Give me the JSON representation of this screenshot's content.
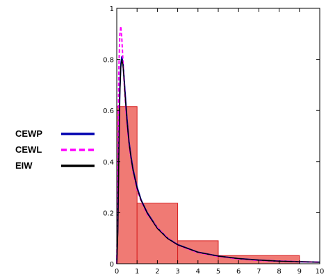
{
  "chart_data": {
    "type": "bar",
    "histogram": {
      "bins": [
        [
          0,
          1
        ],
        [
          1,
          3
        ],
        [
          3,
          5
        ],
        [
          5,
          9
        ]
      ],
      "values": [
        0.615,
        0.237,
        0.09,
        0.032
      ],
      "color": "#f07a74",
      "edge_color": "#d62020"
    },
    "series": [
      {
        "name": "CEWP",
        "color": "#0000b0",
        "style": "solid",
        "x": [
          0,
          0.05,
          0.1,
          0.15,
          0.2,
          0.25,
          0.3,
          0.35,
          0.4,
          0.5,
          0.6,
          0.7,
          0.8,
          1,
          1.2,
          1.5,
          2,
          2.5,
          3,
          4,
          5,
          6,
          7,
          8,
          9,
          10
        ],
        "values": [
          0,
          0.15,
          0.45,
          0.68,
          0.78,
          0.81,
          0.79,
          0.74,
          0.68,
          0.57,
          0.48,
          0.42,
          0.37,
          0.3,
          0.25,
          0.2,
          0.14,
          0.1,
          0.075,
          0.045,
          0.03,
          0.02,
          0.014,
          0.01,
          0.008,
          0.006
        ]
      },
      {
        "name": "CEWL",
        "color": "#ff00ff",
        "style": "dashed",
        "x": [
          0,
          0.05,
          0.1,
          0.15,
          0.2,
          0.25,
          0.3,
          0.35,
          0.4,
          0.5,
          0.6,
          0.7,
          0.8,
          1,
          1.2,
          1.5,
          2,
          2.5,
          3,
          4,
          5,
          6,
          7,
          8,
          9,
          10
        ],
        "values": [
          0,
          0.3,
          0.75,
          0.9,
          0.93,
          0.88,
          0.8,
          0.73,
          0.66,
          0.55,
          0.47,
          0.41,
          0.36,
          0.29,
          0.245,
          0.195,
          0.14,
          0.1,
          0.073,
          0.044,
          0.029,
          0.019,
          0.013,
          0.01,
          0.008,
          0.006
        ]
      },
      {
        "name": "EIW",
        "color": "#000000",
        "style": "solid",
        "x": [
          0,
          0.05,
          0.1,
          0.15,
          0.2,
          0.25,
          0.3,
          0.35,
          0.4,
          0.5,
          0.6,
          0.7,
          0.8,
          1,
          1.2,
          1.5,
          2,
          2.5,
          3,
          4,
          5,
          6,
          7,
          8,
          9,
          10
        ],
        "values": [
          0,
          0.12,
          0.42,
          0.66,
          0.77,
          0.8,
          0.78,
          0.73,
          0.67,
          0.56,
          0.475,
          0.415,
          0.365,
          0.295,
          0.248,
          0.198,
          0.138,
          0.099,
          0.074,
          0.045,
          0.03,
          0.02,
          0.014,
          0.01,
          0.008,
          0.006
        ]
      }
    ],
    "xlim": [
      0,
      10
    ],
    "ylim": [
      0,
      1
    ],
    "x_ticks": [
      "0",
      "1",
      "2",
      "3",
      "4",
      "5",
      "6",
      "7",
      "8",
      "9",
      "10"
    ],
    "y_ticks": [
      "0",
      "0.2",
      "0.4",
      "0.6",
      "0.8",
      "1"
    ],
    "title": "",
    "xlabel": "",
    "ylabel": "",
    "grid": false,
    "legend_position": "left-outside"
  }
}
